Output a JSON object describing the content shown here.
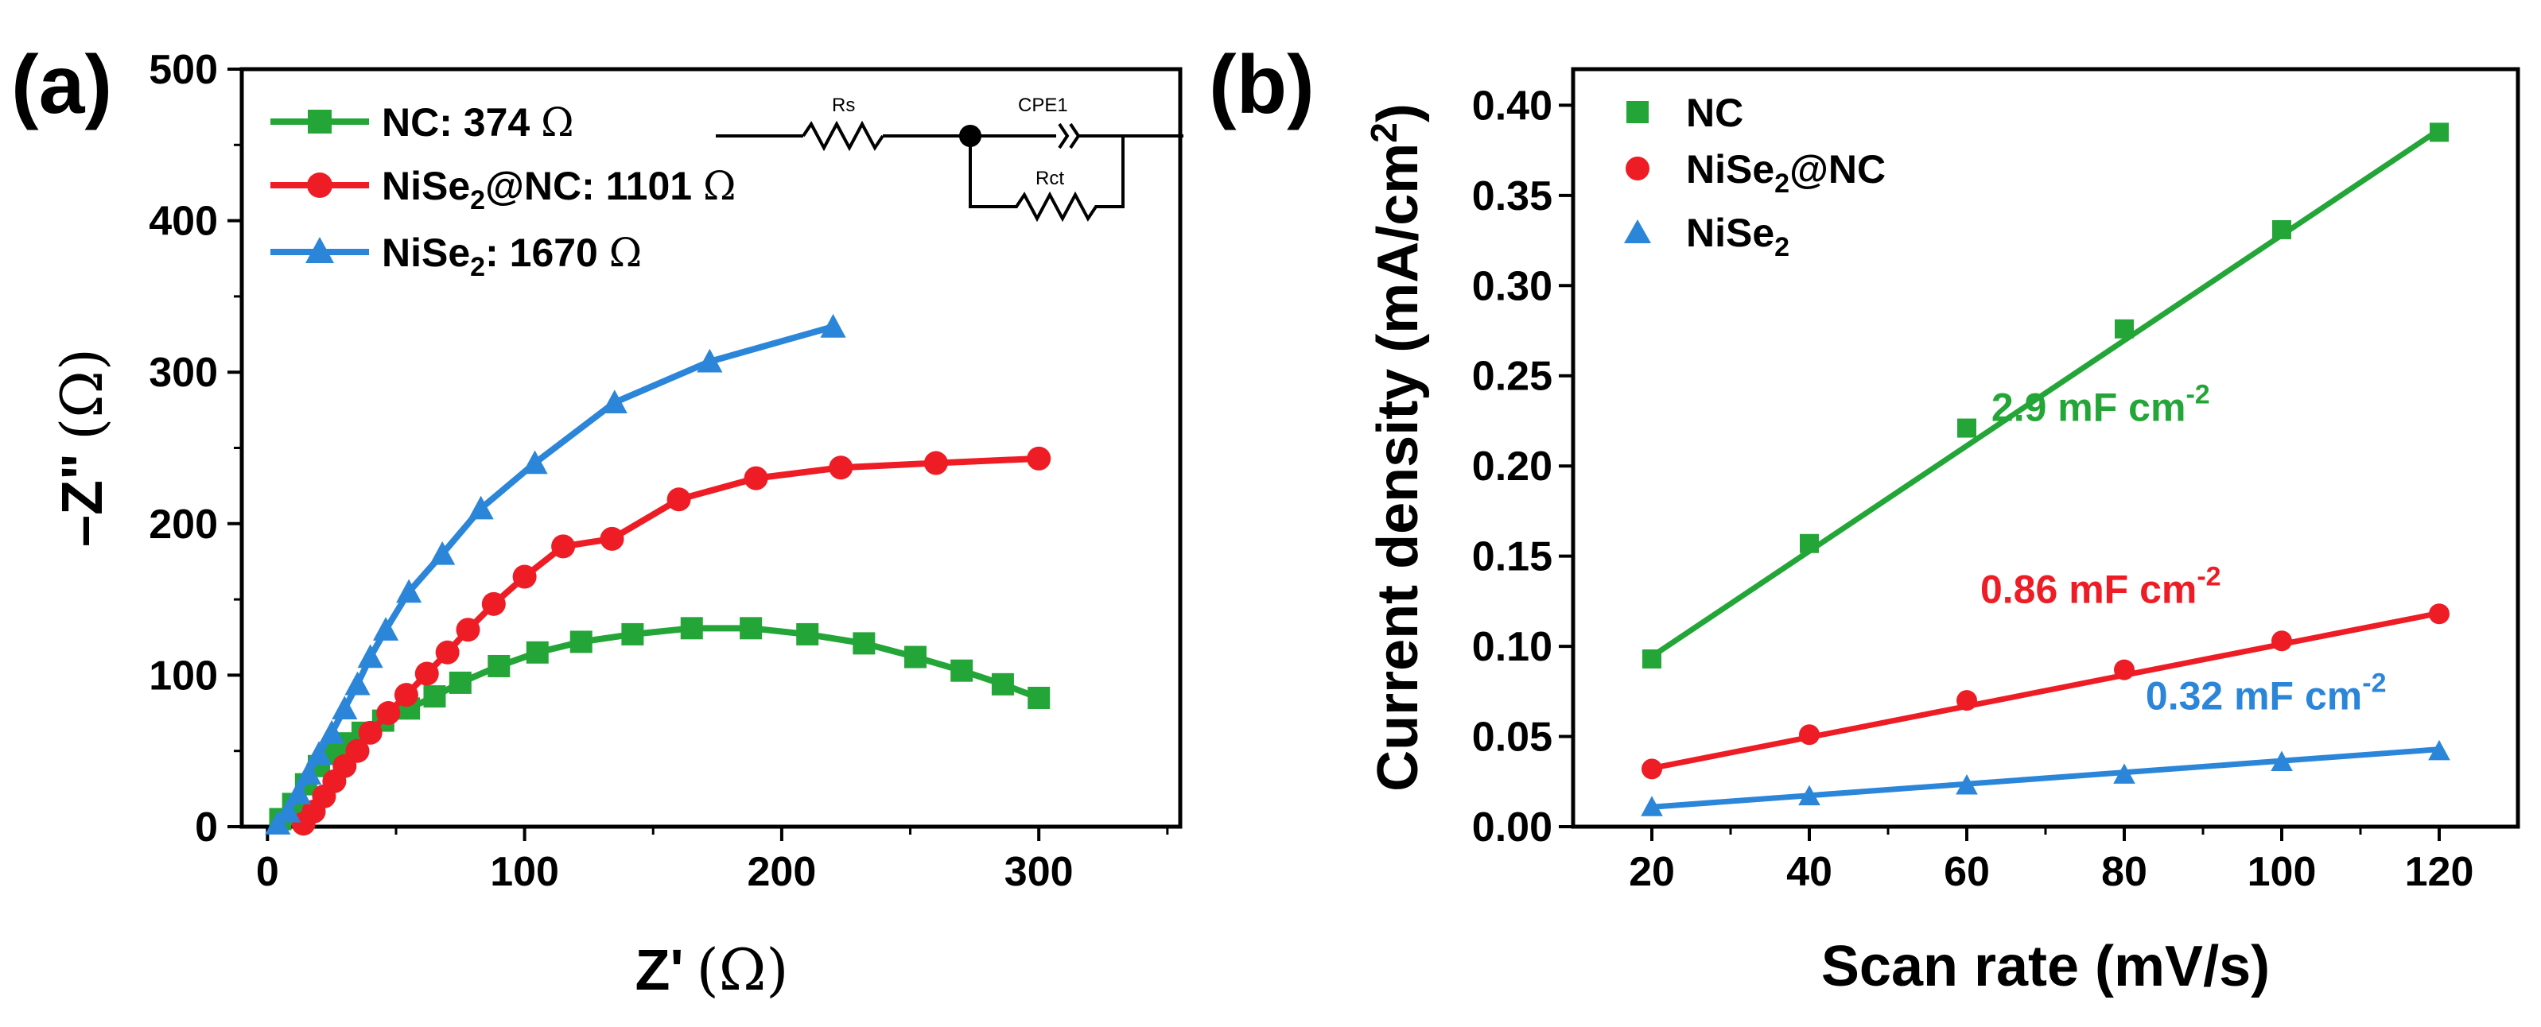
{
  "colors": {
    "nc": "#23a637",
    "nise2nc": "#ee1c24",
    "nise2": "#2b86d9",
    "axis": "#000000"
  },
  "circuit": {
    "rs_label": "Rs",
    "cpe_label": "CPE1",
    "rct_label": "Rct"
  },
  "chart_data": [
    {
      "type": "line",
      "panel_label": "(a)",
      "title": "",
      "xlabel": "Z'",
      "xlabel_unit": "(Ω)",
      "ylabel": "–Z\"",
      "ylabel_unit": "(Ω)",
      "xlim": [
        -10,
        355
      ],
      "ylim": [
        0,
        500
      ],
      "xticks": [
        0,
        100,
        200,
        300
      ],
      "yticks": [
        0,
        100,
        200,
        300,
        400,
        500
      ],
      "legend_position": "top-left",
      "series": [
        {
          "name": "NC: 374 Ω",
          "legend": {
            "pre": "NC: 374 ",
            "sub": "",
            "post": "",
            "unit": "Ω"
          },
          "color": "#23a637",
          "marker": "square",
          "points": [
            [
              5,
              5
            ],
            [
              10,
              15
            ],
            [
              15,
              28
            ],
            [
              20,
              40
            ],
            [
              25,
              48
            ],
            [
              30,
              55
            ],
            [
              37,
              62
            ],
            [
              45,
              70
            ],
            [
              55,
              78
            ],
            [
              65,
              86
            ],
            [
              75,
              95
            ],
            [
              90,
              106
            ],
            [
              105,
              115
            ],
            [
              122,
              122
            ],
            [
              142,
              127
            ],
            [
              165,
              131
            ],
            [
              188,
              131
            ],
            [
              210,
              127
            ],
            [
              232,
              121
            ],
            [
              252,
              112
            ],
            [
              270,
              103
            ],
            [
              286,
              94
            ],
            [
              300,
              85
            ]
          ]
        },
        {
          "name": "NiSe2@NC: 1101 Ω",
          "legend": {
            "pre": "NiSe",
            "sub": "2",
            "post": "@NC: 1101 ",
            "unit": "Ω"
          },
          "color": "#ee1c24",
          "marker": "circle",
          "points": [
            [
              14,
              2
            ],
            [
              18,
              10
            ],
            [
              22,
              20
            ],
            [
              26,
              30
            ],
            [
              30,
              40
            ],
            [
              35,
              50
            ],
            [
              40,
              62
            ],
            [
              47,
              75
            ],
            [
              54,
              87
            ],
            [
              62,
              101
            ],
            [
              70,
              115
            ],
            [
              78,
              130
            ],
            [
              88,
              147
            ],
            [
              100,
              165
            ],
            [
              115,
              185
            ],
            [
              134,
              190
            ],
            [
              160,
              216
            ],
            [
              190,
              230
            ],
            [
              223,
              237
            ],
            [
              260,
              240
            ],
            [
              300,
              243
            ]
          ]
        },
        {
          "name": "NiSe2: 1670 Ω",
          "legend": {
            "pre": "NiSe",
            "sub": "2",
            "post": ": 1670 ",
            "unit": "Ω"
          },
          "color": "#2b86d9",
          "marker": "triangle",
          "points": [
            [
              4,
              2
            ],
            [
              8,
              10
            ],
            [
              12,
              22
            ],
            [
              16,
              35
            ],
            [
              20,
              48
            ],
            [
              25,
              62
            ],
            [
              30,
              78
            ],
            [
              35,
              94
            ],
            [
              40,
              112
            ],
            [
              46,
              130
            ],
            [
              55,
              155
            ],
            [
              68,
              180
            ],
            [
              83,
              210
            ],
            [
              104,
              240
            ],
            [
              135,
              280
            ],
            [
              172,
              307
            ],
            [
              220,
              330
            ]
          ]
        }
      ]
    },
    {
      "type": "scatter",
      "panel_label": "(b)",
      "title": "",
      "xlabel": "Scan rate (mV/s)",
      "ylabel": "Current density (mA/cm",
      "ylabel_sup": "2",
      "ylabel_end": ")",
      "xlim": [
        10,
        130
      ],
      "ylim": [
        0.0,
        0.42
      ],
      "xticks": [
        20,
        40,
        60,
        80,
        100,
        120
      ],
      "yticks": [
        0.0,
        0.05,
        0.1,
        0.15,
        0.2,
        0.25,
        0.3,
        0.35,
        0.4
      ],
      "ytick_labels": [
        "0.00",
        "0.05",
        "0.10",
        "0.15",
        "0.20",
        "0.25",
        "0.30",
        "0.35",
        "0.40"
      ],
      "legend_position": "top-left",
      "series": [
        {
          "name": "NC",
          "legend": {
            "pre": "NC",
            "sub": "",
            "post": ""
          },
          "color": "#23a637",
          "marker": "square",
          "x": [
            20,
            40,
            60,
            80,
            100,
            120
          ],
          "y": [
            0.093,
            0.157,
            0.221,
            0.276,
            0.331,
            0.385
          ],
          "fit": {
            "slope": 0.00292,
            "intercept": 0.036
          },
          "annotation": {
            "text": "2.9 mF cm",
            "sup": "-2",
            "x": 77,
            "y": 0.225
          }
        },
        {
          "name": "NiSe2@NC",
          "legend": {
            "pre": "NiSe",
            "sub": "2",
            "post": "@NC"
          },
          "color": "#ee1c24",
          "marker": "circle",
          "x": [
            20,
            40,
            60,
            80,
            100,
            120
          ],
          "y": [
            0.032,
            0.051,
            0.07,
            0.087,
            0.103,
            0.118
          ],
          "fit": {
            "slope": 0.00086,
            "intercept": 0.0152
          },
          "annotation": {
            "text": "0.86 mF cm",
            "sup": "-2",
            "x": 77,
            "y": 0.124
          }
        },
        {
          "name": "NiSe2",
          "legend": {
            "pre": "NiSe",
            "sub": "2",
            "post": ""
          },
          "color": "#2b86d9",
          "marker": "triangle",
          "x": [
            20,
            40,
            60,
            80,
            100,
            120
          ],
          "y": [
            0.011,
            0.017,
            0.023,
            0.029,
            0.036,
            0.042
          ],
          "fit": {
            "slope": 0.00032,
            "intercept": 0.0045
          },
          "annotation": {
            "text": "0.32 mF cm",
            "sup": "-2",
            "x": 98,
            "y": 0.065
          }
        }
      ]
    }
  ]
}
